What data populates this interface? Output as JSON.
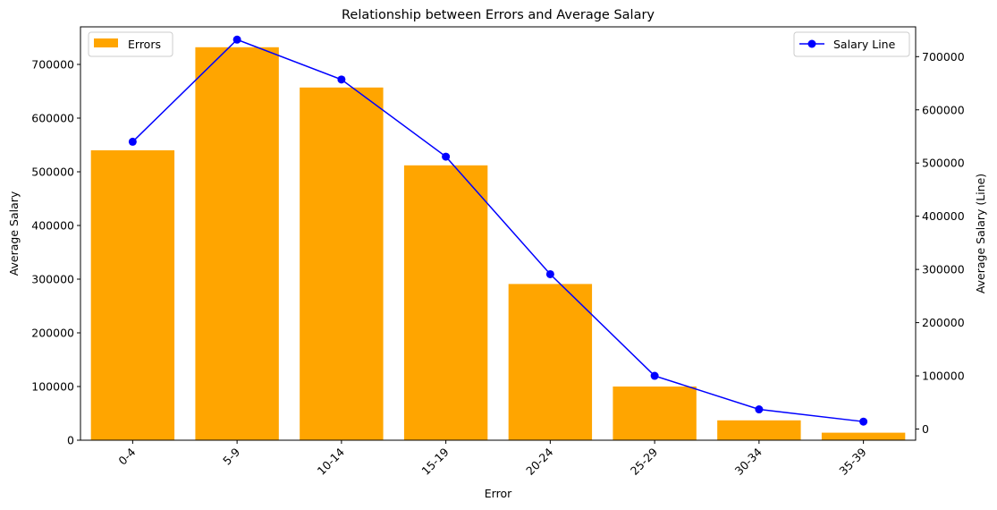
{
  "chart_data": {
    "type": "bar",
    "title": "Relationship between Errors and Average Salary",
    "xlabel": "Error",
    "ylabel": "Average Salary",
    "y2label": "Average Salary (Line)",
    "categories": [
      "0-4",
      "5-9",
      "10-14",
      "15-19",
      "20-24",
      "25-29",
      "30-34",
      "35-39"
    ],
    "ylim": [
      0,
      770000
    ],
    "y2lim": [
      -21000,
      756000
    ],
    "yticks": [
      0,
      100000,
      200000,
      300000,
      400000,
      500000,
      600000,
      700000
    ],
    "y2ticks": [
      0,
      100000,
      200000,
      300000,
      400000,
      500000,
      600000,
      700000
    ],
    "grid": false,
    "series": [
      {
        "name": "Errors",
        "kind": "bar",
        "axis": "left",
        "color": "#FFA500",
        "values": [
          540000,
          732000,
          657000,
          512000,
          291000,
          100000,
          37000,
          14000
        ]
      },
      {
        "name": "Salary Line",
        "kind": "line",
        "axis": "right",
        "color": "#0000FF",
        "marker": "circle",
        "values": [
          540000,
          732000,
          657000,
          512000,
          291000,
          100000,
          37000,
          14000
        ]
      }
    ],
    "legends": [
      {
        "placement": "top-left",
        "entries": [
          "Errors"
        ]
      },
      {
        "placement": "top-right",
        "entries": [
          "Salary Line"
        ]
      }
    ]
  }
}
